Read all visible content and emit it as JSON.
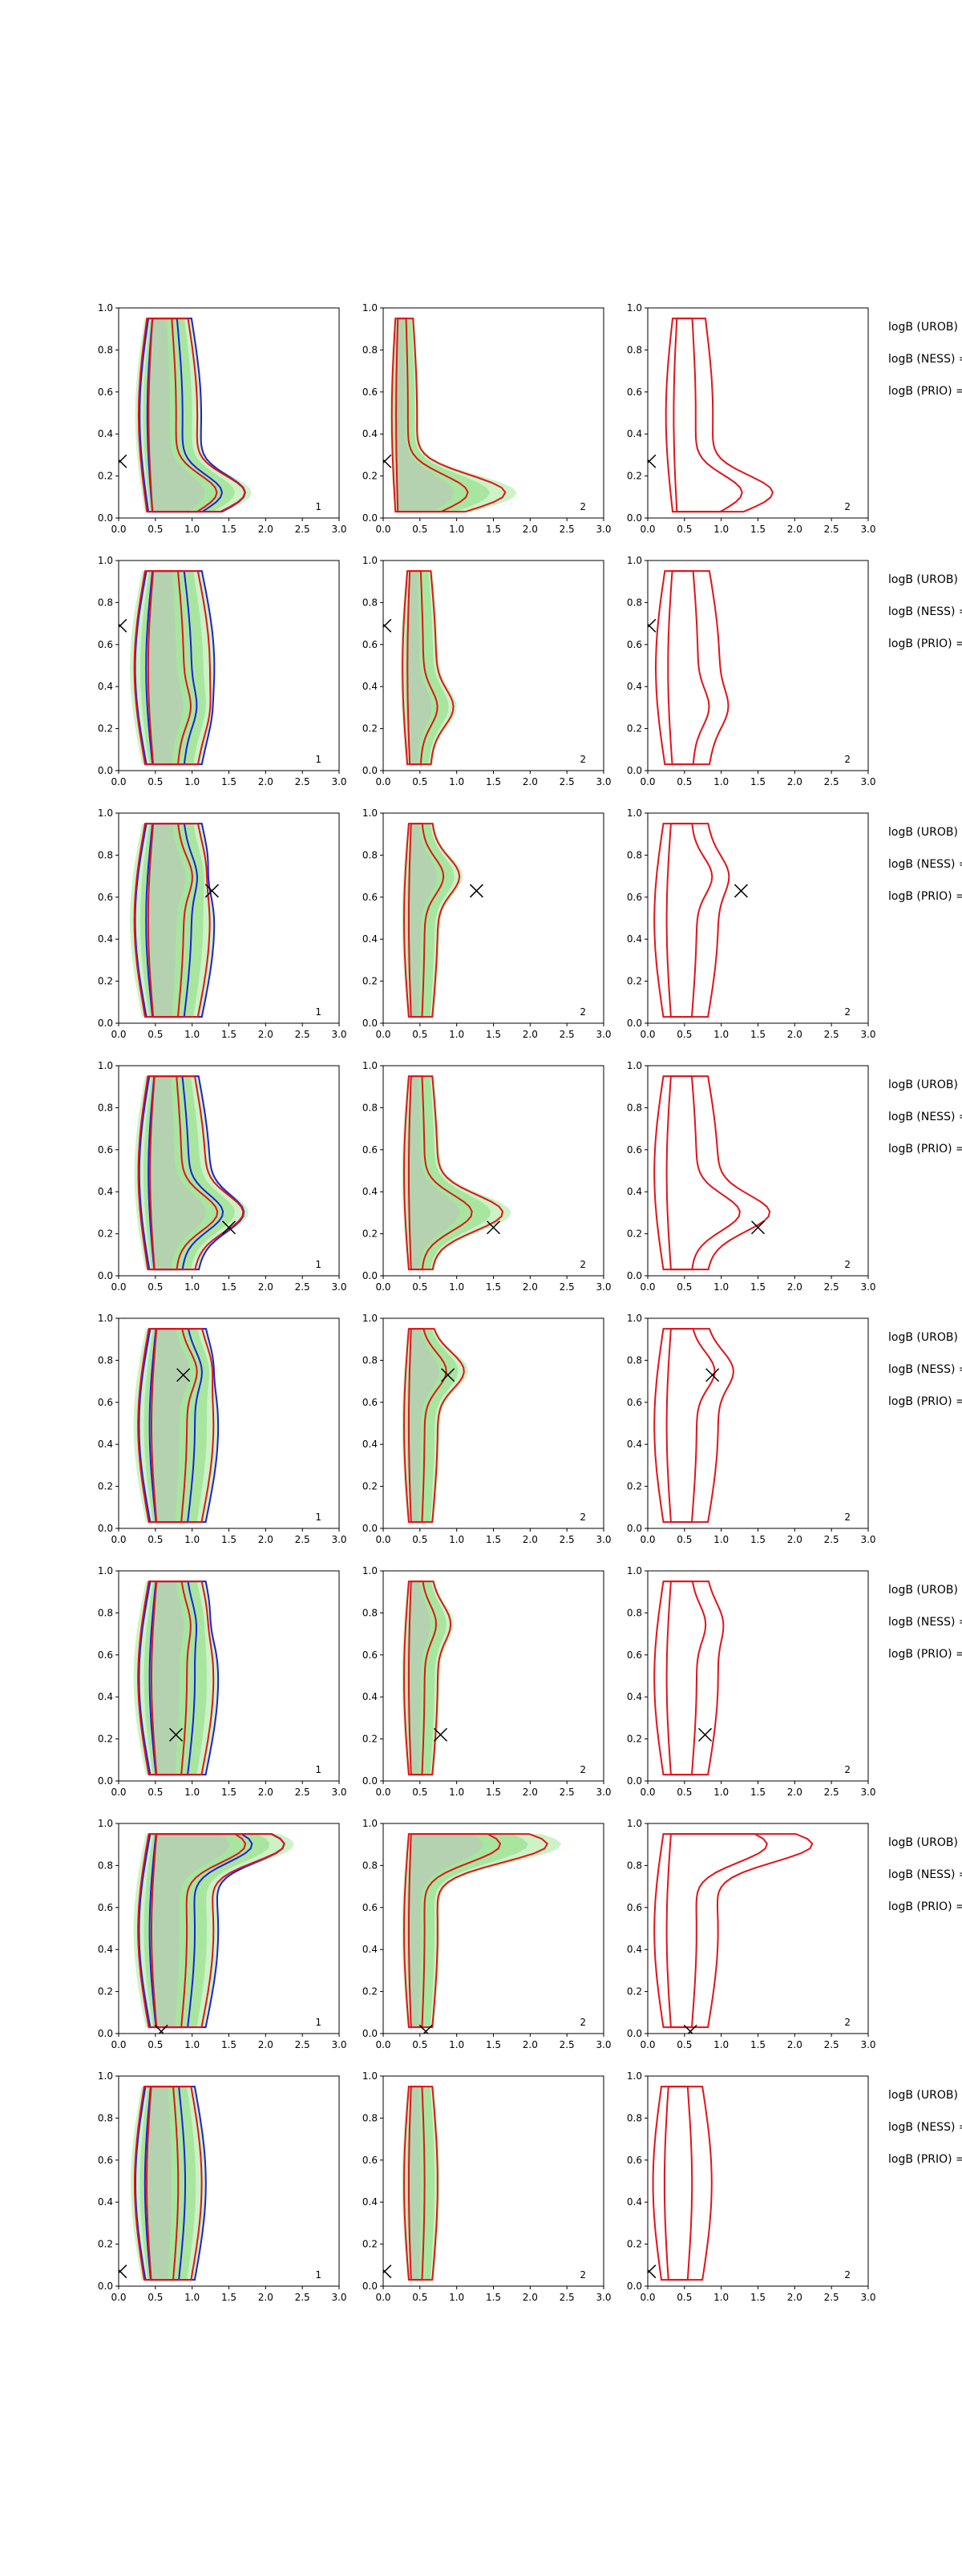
{
  "figure": {
    "xticks": [
      "0.0",
      "0.5",
      "1.0",
      "1.5",
      "2.0",
      "2.5",
      "3.0"
    ],
    "yticks": [
      "0.0",
      "0.2",
      "0.4",
      "0.6",
      "0.8",
      "1.0"
    ],
    "side_labels": [
      "logB (UROB) =",
      "logB (NESS) =",
      "logB (PRIO) ="
    ],
    "colors": {
      "red": "#e0141a",
      "blue": "#1f1fd6",
      "green_light": "#ccf2c6",
      "green_mid": "#a8e6a0",
      "grey": "#b9c9b6"
    }
  },
  "chart_data": {
    "type": "contour",
    "xlim": [
      0,
      3
    ],
    "ylim": [
      0,
      1
    ],
    "legend": "none",
    "rows": [
      {
        "marker": [
          0.02,
          0.27
        ],
        "panel_labels": [
          "1",
          "2",
          "2"
        ],
        "shape_c": [
          0.65,
          0.28,
          0.55
        ],
        "shape_m": [
          0.35,
          0.15,
          0.28
        ],
        "lobes": [
          [
            1.8,
            0.12,
            0.75
          ]
        ]
      },
      {
        "marker": [
          0.02,
          0.69
        ],
        "panel_labels": [
          "1",
          "2",
          "2"
        ],
        "shape_c": [
          0.7,
          0.48,
          0.52
        ],
        "shape_m": [
          0.45,
          0.2,
          0.38
        ],
        "lobes": [
          [
            1.3,
            0.3,
            0.35
          ]
        ]
      },
      {
        "marker": [
          1.27,
          0.63
        ],
        "panel_labels": [
          "1",
          "2",
          "2"
        ],
        "shape_c": [
          0.7,
          0.5,
          0.5
        ],
        "shape_m": [
          0.45,
          0.2,
          0.38
        ],
        "lobes": [
          [
            1.2,
            0.7,
            0.55
          ]
        ]
      },
      {
        "marker": [
          1.5,
          0.23
        ],
        "panel_labels": [
          "1",
          "2",
          "2"
        ],
        "shape_c": [
          0.7,
          0.5,
          0.5
        ],
        "shape_m": [
          0.4,
          0.2,
          0.38
        ],
        "lobes": [
          [
            1.8,
            0.3,
            0.7
          ]
        ]
      },
      {
        "marker": [
          0.88,
          0.73
        ],
        "panel_labels": [
          "1",
          "2",
          "2"
        ],
        "shape_c": [
          0.75,
          0.5,
          0.5
        ],
        "shape_m": [
          0.45,
          0.2,
          0.38
        ],
        "lobes": [
          [
            1.3,
            0.75,
            0.55
          ]
        ]
      },
      {
        "marker": [
          0.78,
          0.22
        ],
        "panel_labels": [
          "1",
          "2",
          "2"
        ],
        "shape_c": [
          0.75,
          0.5,
          0.5
        ],
        "shape_m": [
          0.45,
          0.2,
          0.38
        ],
        "lobes": [
          [
            1.2,
            0.75,
            0.35
          ]
        ]
      },
      {
        "marker": [
          0.58,
          0.01
        ],
        "panel_labels": [
          "1",
          "2",
          "2"
        ],
        "shape_c": [
          0.75,
          0.5,
          0.5
        ],
        "shape_m": [
          0.45,
          0.2,
          0.38
        ],
        "lobes": [
          [
            2.3,
            0.9,
            0.8
          ]
        ]
      },
      {
        "marker": [
          0.02,
          0.07
        ],
        "panel_labels": [
          "1",
          "2",
          "2"
        ],
        "shape_c": [
          0.65,
          0.5,
          0.45
        ],
        "shape_m": [
          0.4,
          0.2,
          0.35
        ],
        "lobes": []
      }
    ]
  }
}
